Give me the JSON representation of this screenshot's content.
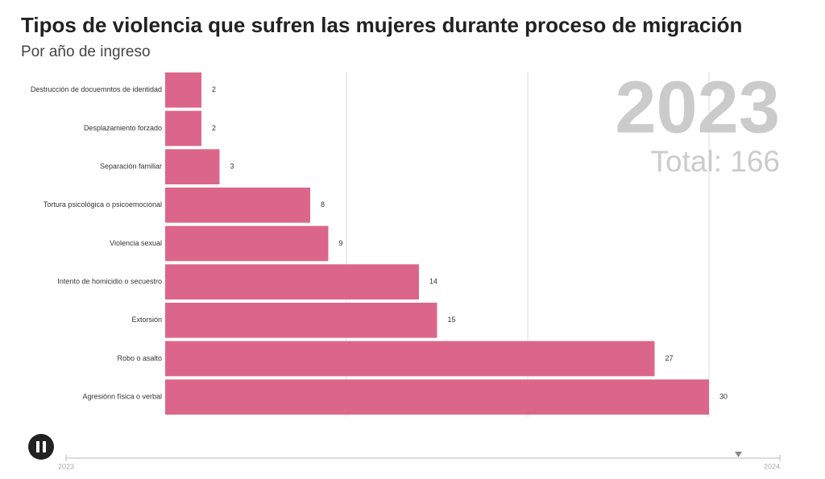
{
  "chart_data": {
    "type": "bar",
    "orientation": "horizontal",
    "title": "Tipos de violencia que sufren las mujeres durante proceso de migración",
    "subtitle": "Por año de ingreso",
    "period": "2023",
    "total_label": "Total: 166",
    "categories": [
      "Destrucción de docuemntos de identidad",
      "Desplazamiento forzado",
      "Separación familiar",
      "Tortura psicológica o psicoemocional",
      "Violencia sexual",
      "Intento de homicidio o secuestro",
      "Extorsión",
      "Robo o asalto",
      "Agresiónn física o verbal"
    ],
    "values": [
      2,
      2,
      3,
      8,
      9,
      14,
      15,
      27,
      30
    ],
    "color": "#dc6689",
    "xlim": [
      0,
      30
    ],
    "xticks": [
      10,
      20,
      30
    ],
    "grid": true,
    "timeline": {
      "start": "2023",
      "end": "2024"
    }
  }
}
